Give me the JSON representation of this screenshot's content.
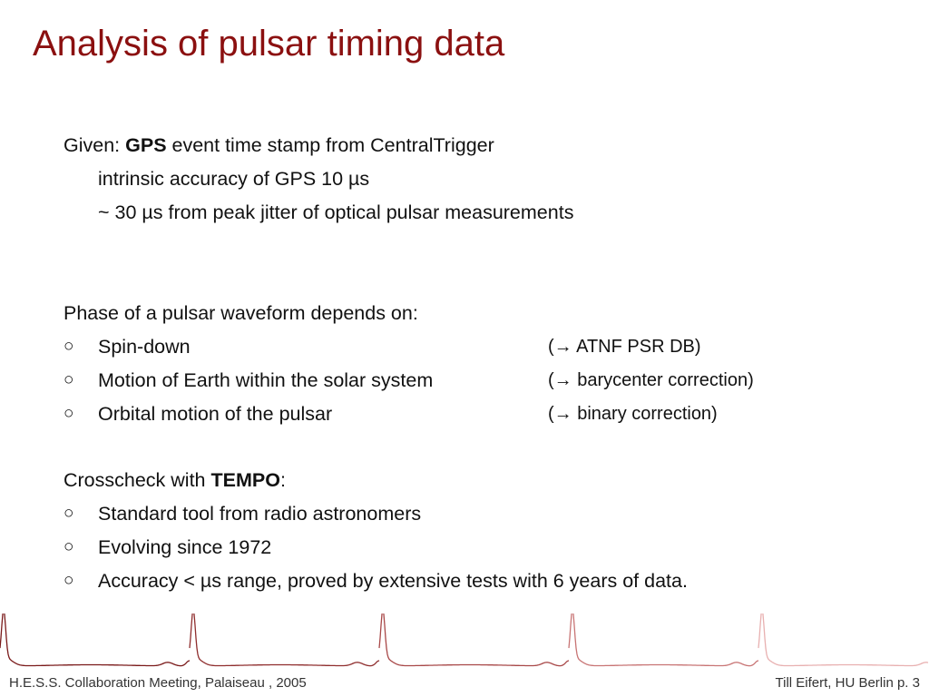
{
  "slide": {
    "title": "Analysis of pulsar timing data"
  },
  "given": {
    "prefix": "Given: ",
    "bold": "GPS",
    "rest": " event time stamp from CentralTrigger",
    "lines": [
      "intrinsic accuracy of GPS 10 µs",
      "~ 30 µs from peak jitter of optical pulsar measurements"
    ]
  },
  "phase": {
    "heading": "Phase of a pulsar waveform depends on:",
    "items": [
      {
        "text": "Spin-down",
        "note": "(→ ATNF PSR DB)"
      },
      {
        "text": "Motion of Earth within the solar system",
        "note": "(→ barycenter correction)"
      },
      {
        "text": "Orbital motion of the pulsar",
        "note": "(→ binary correction)"
      }
    ]
  },
  "crosscheck": {
    "prefix": "Crosscheck with ",
    "bold": "TEMPO",
    "suffix": ":",
    "items": [
      "Standard tool from radio astronomers",
      "Evolving since 1972",
      "Accuracy < µs range, proved by extensive tests with 6 years of data."
    ]
  },
  "bullet_glyph": "○",
  "waveform": {
    "icon": "pulsar-lightcurve-decoration",
    "colors": [
      "#7a1a1a",
      "#8f2e2e",
      "#a84848",
      "#c87474",
      "#e8b0b0"
    ]
  },
  "footer": {
    "left": "H.E.S.S. Collaboration Meeting, Palaiseau , 2005",
    "right": "Till Eifert, HU Berlin   p. 3"
  }
}
